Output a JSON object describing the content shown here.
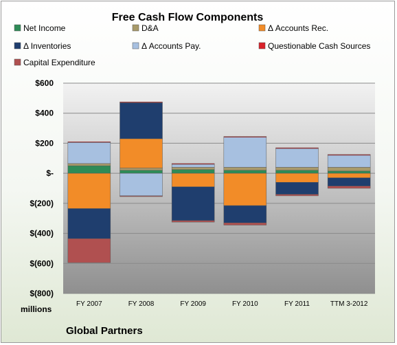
{
  "chart_data": {
    "type": "bar",
    "stacked": true,
    "title": "Free Cash Flow Components",
    "unit_label": "millions",
    "footer": "Global Partners",
    "categories": [
      "FY 2007",
      "FY 2008",
      "FY 2009",
      "FY 2010",
      "FY 2011",
      "TTM 3-2012"
    ],
    "ylim": [
      -800,
      600
    ],
    "yticks": [
      600,
      400,
      200,
      0,
      -200,
      -400,
      -600,
      -800
    ],
    "ytick_labels": [
      "$600",
      "$400",
      "$200",
      "$-",
      "$(200)",
      "$(400)",
      "$(600)",
      "$(800)"
    ],
    "legend_placement": "top",
    "grid": true,
    "series": [
      {
        "name": "Net Income",
        "color": "#2e8b57",
        "values": [
          50,
          20,
          25,
          20,
          20,
          15
        ]
      },
      {
        "name": "D&A",
        "color": "#a89a6a",
        "values": [
          15,
          15,
          15,
          20,
          20,
          25
        ]
      },
      {
        "name": "Δ Accounts Rec.",
        "color": "#f28c28",
        "values": [
          -235,
          195,
          -90,
          -215,
          -60,
          -30
        ]
      },
      {
        "name": "Δ Inventories",
        "color": "#1f3e6e",
        "values": [
          -200,
          240,
          -225,
          -115,
          -80,
          -55
        ]
      },
      {
        "name": "Δ Accounts Pay.",
        "color": "#a7c0e0",
        "values": [
          140,
          -150,
          20,
          200,
          125,
          80
        ]
      },
      {
        "name": "Questionable Cash Sources",
        "color": "#d9222a",
        "values": [
          5,
          5,
          5,
          5,
          5,
          5
        ]
      },
      {
        "name": "Capital Expenditure",
        "color": "#b05050",
        "values": [
          -160,
          -5,
          -10,
          -15,
          -10,
          -15
        ]
      }
    ]
  }
}
